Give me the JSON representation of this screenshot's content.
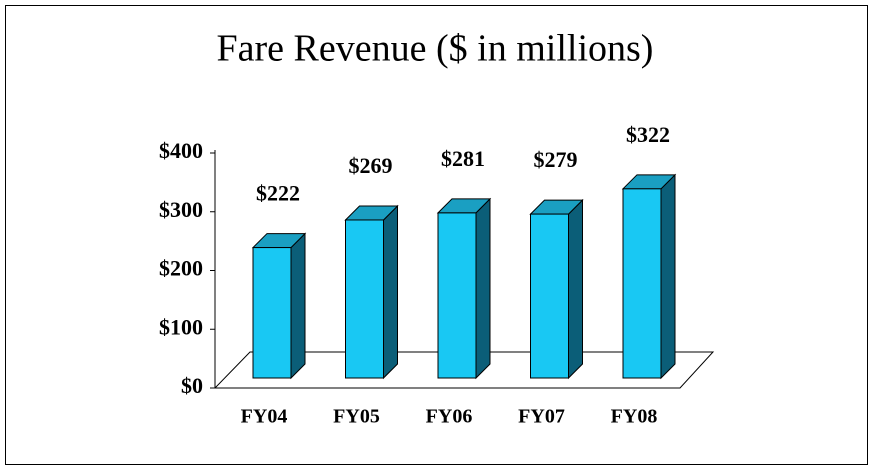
{
  "chart_data": {
    "type": "bar3d",
    "title": "Fare Revenue ($ in millions)",
    "categories": [
      "FY04",
      "FY05",
      "FY06",
      "FY07",
      "FY08"
    ],
    "values": [
      222,
      269,
      281,
      279,
      322
    ],
    "value_labels": [
      "$222",
      "$269",
      "$281",
      "$279",
      "$322"
    ],
    "color": "#19c8f3",
    "ylim": [
      0,
      400
    ],
    "yticks": [
      {
        "value": 0,
        "label": "$0"
      },
      {
        "value": 100,
        "label": "$100"
      },
      {
        "value": 200,
        "label": "$200"
      },
      {
        "value": 300,
        "label": "$300"
      },
      {
        "value": 400,
        "label": "$400"
      }
    ],
    "grid": false
  }
}
